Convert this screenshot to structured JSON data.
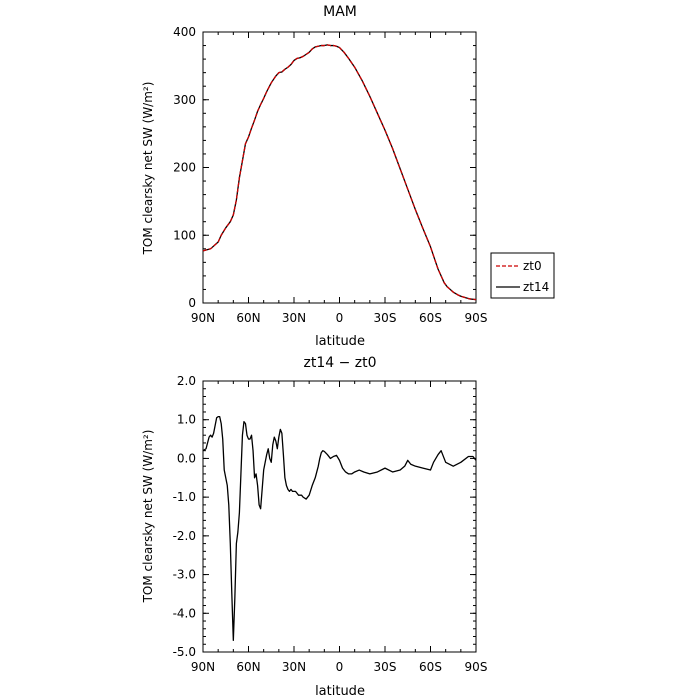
{
  "chart_data": [
    {
      "type": "line",
      "title": "MAM",
      "xlabel": "latitude",
      "ylabel": "TOM clearsky net SW (W/m²)",
      "x_ticks": [
        "90N",
        "60N",
        "30N",
        "0",
        "30S",
        "60S",
        "90S"
      ],
      "y_ticks": [
        "0",
        "100",
        "200",
        "300",
        "400"
      ],
      "xlim": [
        90,
        -90
      ],
      "ylim": [
        0,
        400
      ],
      "legend": {
        "placement": "right",
        "entries": [
          "zt0",
          "zt14"
        ]
      },
      "x": [
        90,
        85,
        80,
        78,
        75,
        72,
        70,
        68,
        66,
        64,
        62,
        60,
        58,
        56,
        54,
        52,
        50,
        48,
        45,
        42,
        40,
        38,
        36,
        34,
        32,
        30,
        28,
        26,
        24,
        22,
        20,
        18,
        16,
        14,
        12,
        10,
        8,
        6,
        4,
        2,
        0,
        -3,
        -6,
        -10,
        -15,
        -20,
        -25,
        -30,
        -35,
        -40,
        -45,
        -50,
        -55,
        -60,
        -63,
        -65,
        -67,
        -69,
        -71,
        -73,
        -75,
        -78,
        -80,
        -83,
        -86,
        -90
      ],
      "series": [
        {
          "name": "zt0",
          "color": "#cc0000",
          "dash": true,
          "values": [
            77,
            80,
            90,
            100,
            111,
            120,
            130,
            152,
            185,
            210,
            235,
            245,
            258,
            270,
            283,
            293,
            302,
            312,
            325,
            335,
            340,
            341,
            345,
            348,
            352,
            358,
            361,
            362,
            364,
            367,
            370,
            375,
            378,
            379,
            380,
            380,
            381,
            380,
            380,
            379,
            377,
            370,
            361,
            348,
            328,
            305,
            280,
            255,
            228,
            198,
            168,
            138,
            110,
            83,
            63,
            50,
            40,
            30,
            24,
            20,
            16,
            12,
            10,
            8,
            6,
            5
          ]
        },
        {
          "name": "zt14",
          "color": "#000000",
          "dash": false,
          "values": [
            77,
            80,
            90,
            100,
            111,
            120,
            130,
            152,
            185,
            210,
            235,
            245,
            258,
            270,
            283,
            293,
            302,
            312,
            325,
            335,
            340,
            341,
            345,
            348,
            352,
            358,
            361,
            362,
            364,
            367,
            370,
            375,
            378,
            379,
            380,
            380,
            381,
            380,
            380,
            379,
            377,
            370,
            361,
            348,
            328,
            305,
            280,
            255,
            228,
            198,
            168,
            138,
            110,
            83,
            63,
            50,
            40,
            30,
            24,
            20,
            16,
            12,
            10,
            8,
            6,
            5
          ]
        }
      ]
    },
    {
      "type": "line",
      "title": "zt14 − zt0",
      "xlabel": "latitude",
      "ylabel": "TOM clearsky net SW (W/m²)",
      "x_ticks": [
        "90N",
        "60N",
        "30N",
        "0",
        "30S",
        "60S",
        "90S"
      ],
      "y_ticks": [
        "2.0",
        "1.0",
        "0.0",
        "-1.0",
        "-2.0",
        "-3.0",
        "-4.0",
        "-5.0"
      ],
      "xlim": [
        90,
        -90
      ],
      "ylim": [
        -5,
        2
      ],
      "x": [
        90,
        88,
        86,
        85,
        84,
        83,
        82,
        81,
        80,
        79,
        78,
        77,
        76,
        75,
        74,
        73,
        72,
        71,
        70,
        69,
        68,
        67,
        66,
        65,
        64,
        63,
        62,
        61,
        60,
        59,
        58,
        57,
        56,
        55,
        54,
        53,
        52,
        51,
        50,
        49,
        48,
        47,
        46,
        45,
        44,
        43,
        42,
        41,
        40,
        39,
        38,
        37,
        36,
        35,
        34,
        33,
        32,
        31,
        30,
        29,
        28,
        27,
        26,
        25,
        24,
        22,
        20,
        18,
        16,
        14,
        13,
        12,
        11,
        10,
        8,
        6,
        4,
        2,
        0,
        -2,
        -4,
        -6,
        -8,
        -10,
        -13,
        -16,
        -20,
        -25,
        -30,
        -35,
        -40,
        -43,
        -45,
        -47,
        -50,
        -55,
        -60,
        -62,
        -65,
        -67,
        -70,
        -75,
        -80,
        -85,
        -88,
        -90
      ],
      "series": [
        {
          "name": "zt14 − zt0",
          "color": "#000000",
          "dash": false,
          "values": [
            0.2,
            0.25,
            0.55,
            0.6,
            0.55,
            0.65,
            0.85,
            1.05,
            1.08,
            1.08,
            0.9,
            0.5,
            -0.3,
            -0.5,
            -0.7,
            -1.2,
            -2.2,
            -3.5,
            -4.7,
            -3.6,
            -2.2,
            -1.9,
            -1.4,
            -0.4,
            0.6,
            0.95,
            0.9,
            0.6,
            0.5,
            0.5,
            0.6,
            0.2,
            -0.5,
            -0.4,
            -0.7,
            -1.2,
            -1.3,
            -0.8,
            -0.3,
            -0.1,
            0.1,
            0.25,
            0.0,
            -0.1,
            0.35,
            0.55,
            0.45,
            0.25,
            0.55,
            0.75,
            0.65,
            0.1,
            -0.5,
            -0.7,
            -0.8,
            -0.85,
            -0.8,
            -0.85,
            -0.85,
            -0.85,
            -0.9,
            -0.95,
            -0.95,
            -0.95,
            -1.0,
            -1.05,
            -0.95,
            -0.7,
            -0.5,
            -0.2,
            0.0,
            0.15,
            0.2,
            0.18,
            0.1,
            0.0,
            0.05,
            0.08,
            -0.05,
            -0.25,
            -0.35,
            -0.4,
            -0.4,
            -0.35,
            -0.3,
            -0.35,
            -0.4,
            -0.35,
            -0.25,
            -0.35,
            -0.3,
            -0.2,
            -0.05,
            -0.15,
            -0.2,
            -0.25,
            -0.3,
            -0.1,
            0.1,
            0.2,
            -0.1,
            -0.2,
            -0.1,
            0.05,
            0.05,
            -0.05
          ]
        }
      ]
    }
  ]
}
